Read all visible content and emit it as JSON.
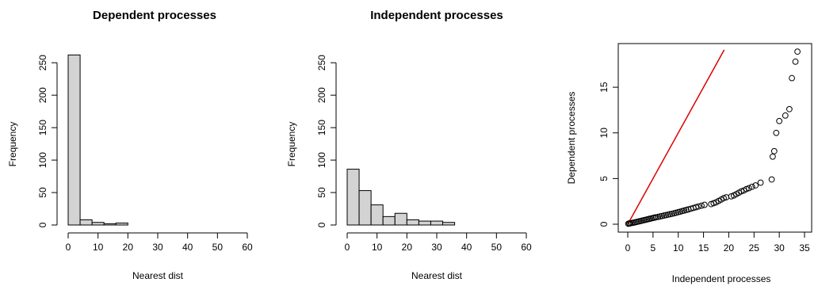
{
  "chart_data": [
    {
      "type": "bar",
      "title": "Dependent processes",
      "xlabel": "Nearest dist",
      "ylabel": "Frequency",
      "bin_width": 4,
      "xlim": [
        0,
        60
      ],
      "ylim": [
        0,
        260
      ],
      "xticks": [
        "0",
        "10",
        "20",
        "30",
        "40",
        "50",
        "60"
      ],
      "yticks": [
        "0",
        "50",
        "100",
        "150",
        "200",
        "250"
      ],
      "bar_color": "#d3d3d3",
      "bins": [
        {
          "x0": 0,
          "x1": 4,
          "count": 262
        },
        {
          "x0": 4,
          "x1": 8,
          "count": 8
        },
        {
          "x0": 8,
          "x1": 12,
          "count": 4
        },
        {
          "x0": 12,
          "x1": 16,
          "count": 2
        },
        {
          "x0": 16,
          "x1": 20,
          "count": 3
        }
      ]
    },
    {
      "type": "bar",
      "title": "Independent processes",
      "xlabel": "Nearest dist",
      "ylabel": "Frequency",
      "bin_width": 4,
      "xlim": [
        0,
        60
      ],
      "ylim": [
        0,
        260
      ],
      "xticks": [
        "0",
        "10",
        "20",
        "30",
        "40",
        "50",
        "60"
      ],
      "yticks": [
        "0",
        "50",
        "100",
        "150",
        "200",
        "250"
      ],
      "bar_color": "#d3d3d3",
      "bins": [
        {
          "x0": 0,
          "x1": 4,
          "count": 86
        },
        {
          "x0": 4,
          "x1": 8,
          "count": 53
        },
        {
          "x0": 8,
          "x1": 12,
          "count": 31
        },
        {
          "x0": 12,
          "x1": 16,
          "count": 13
        },
        {
          "x0": 16,
          "x1": 20,
          "count": 18
        },
        {
          "x0": 20,
          "x1": 24,
          "count": 8
        },
        {
          "x0": 24,
          "x1": 28,
          "count": 6
        },
        {
          "x0": 28,
          "x1": 32,
          "count": 6
        },
        {
          "x0": 32,
          "x1": 36,
          "count": 4
        }
      ]
    },
    {
      "type": "scatter",
      "title": "",
      "xlabel": "Independent processes",
      "ylabel": "Dependent processes",
      "xlim": [
        0,
        35
      ],
      "ylim": [
        0,
        19
      ],
      "xticks": [
        "0",
        "5",
        "10",
        "15",
        "20",
        "25",
        "30",
        "35"
      ],
      "yticks": [
        "0",
        "5",
        "10",
        "15"
      ],
      "point_color": "#000000",
      "reference_line": {
        "x": [
          0,
          19.1
        ],
        "y": [
          0,
          19.1
        ],
        "color": "#dd0000"
      },
      "qq_pairs": [
        [
          0.1,
          0.05
        ],
        [
          0.3,
          0.08
        ],
        [
          0.5,
          0.1
        ],
        [
          0.8,
          0.13
        ],
        [
          1.1,
          0.16
        ],
        [
          1.4,
          0.2
        ],
        [
          1.7,
          0.24
        ],
        [
          2.0,
          0.28
        ],
        [
          2.3,
          0.32
        ],
        [
          2.6,
          0.36
        ],
        [
          2.9,
          0.4
        ],
        [
          3.2,
          0.44
        ],
        [
          3.5,
          0.48
        ],
        [
          3.8,
          0.52
        ],
        [
          4.1,
          0.56
        ],
        [
          4.4,
          0.6
        ],
        [
          4.7,
          0.64
        ],
        [
          5.0,
          0.68
        ],
        [
          5.3,
          0.72
        ],
        [
          5.6,
          0.76
        ],
        [
          6.0,
          0.8
        ],
        [
          6.4,
          0.85
        ],
        [
          6.8,
          0.9
        ],
        [
          7.2,
          0.95
        ],
        [
          7.6,
          1.0
        ],
        [
          8.0,
          1.05
        ],
        [
          8.4,
          1.1
        ],
        [
          8.8,
          1.15
        ],
        [
          9.2,
          1.2
        ],
        [
          9.6,
          1.26
        ],
        [
          10.0,
          1.32
        ],
        [
          10.4,
          1.38
        ],
        [
          10.8,
          1.44
        ],
        [
          11.2,
          1.5
        ],
        [
          11.6,
          1.56
        ],
        [
          12.0,
          1.62
        ],
        [
          12.5,
          1.7
        ],
        [
          13.0,
          1.78
        ],
        [
          13.5,
          1.86
        ],
        [
          14.0,
          1.94
        ],
        [
          14.6,
          2.03
        ],
        [
          15.2,
          2.12
        ],
        [
          16.5,
          2.2
        ],
        [
          17.0,
          2.3
        ],
        [
          17.5,
          2.4
        ],
        [
          18.0,
          2.55
        ],
        [
          18.5,
          2.7
        ],
        [
          19.0,
          2.85
        ],
        [
          19.5,
          2.95
        ],
        [
          20.5,
          3.05
        ],
        [
          21.0,
          3.15
        ],
        [
          21.5,
          3.3
        ],
        [
          22.0,
          3.45
        ],
        [
          22.5,
          3.6
        ],
        [
          23.0,
          3.7
        ],
        [
          23.5,
          3.85
        ],
        [
          24.0,
          3.95
        ],
        [
          24.6,
          4.1
        ],
        [
          25.3,
          4.25
        ],
        [
          26.3,
          4.55
        ],
        [
          28.5,
          4.9
        ],
        [
          28.7,
          7.4
        ],
        [
          29.0,
          8.0
        ],
        [
          29.4,
          10.0
        ],
        [
          30.0,
          11.3
        ],
        [
          31.2,
          11.9
        ],
        [
          32.0,
          12.6
        ],
        [
          32.5,
          16.0
        ],
        [
          33.2,
          17.8
        ],
        [
          33.6,
          18.9
        ]
      ]
    }
  ]
}
